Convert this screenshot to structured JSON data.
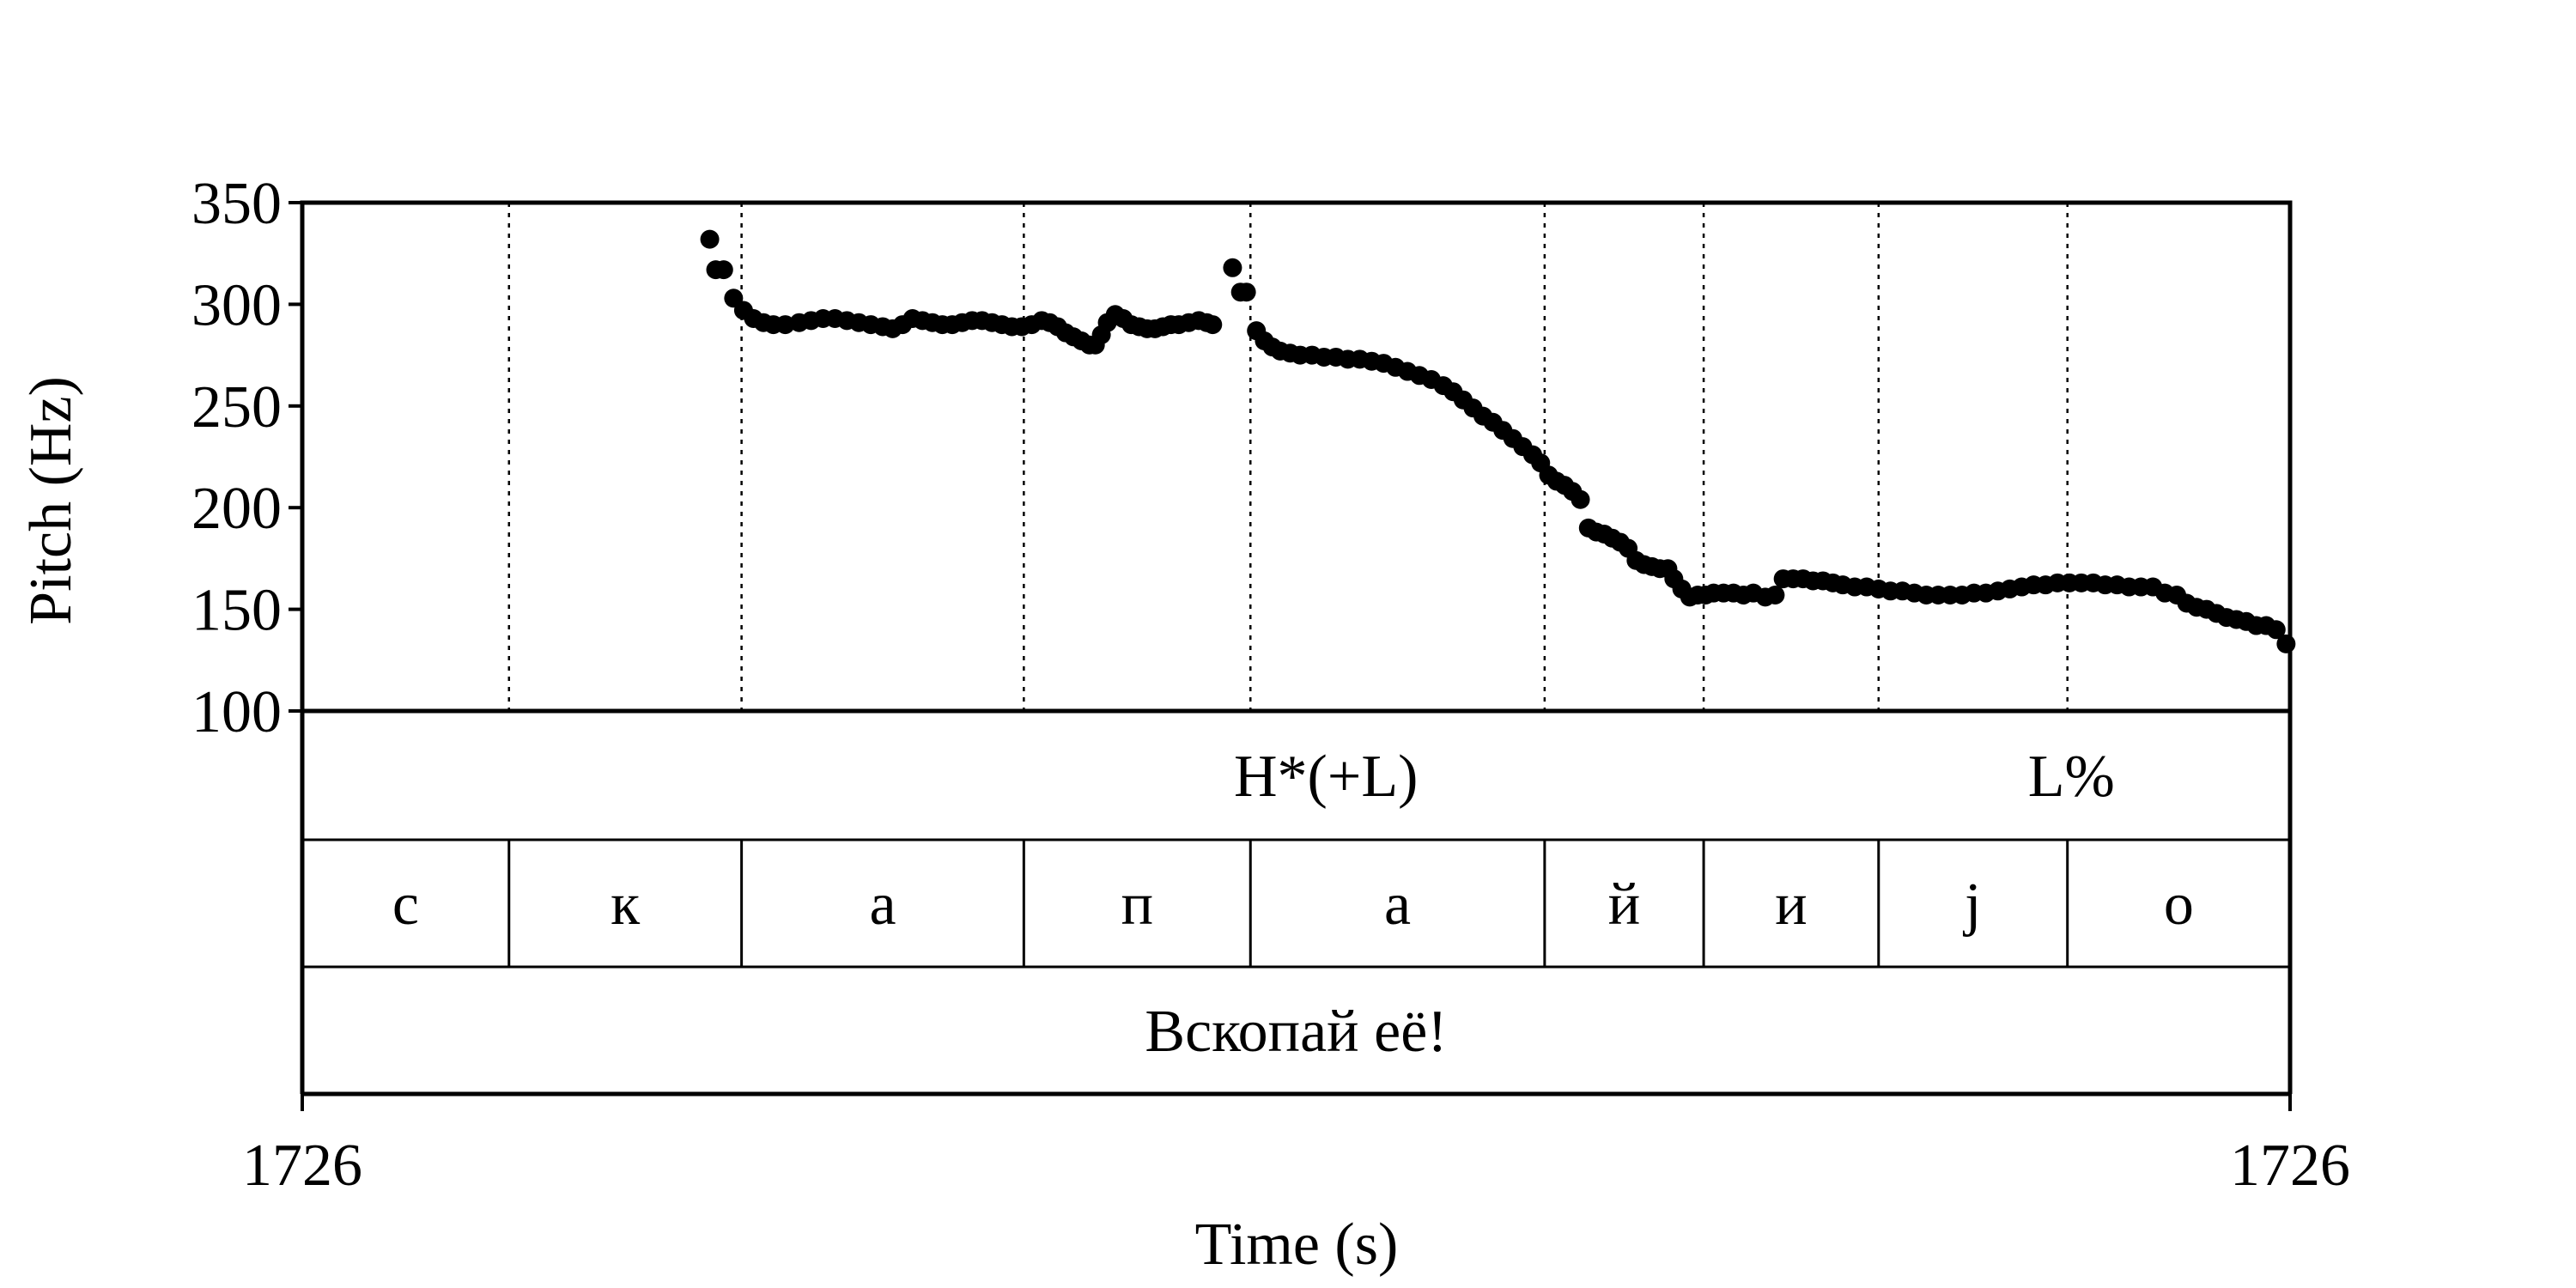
{
  "chart_data": {
    "type": "scatter",
    "title": "",
    "xlabel": "Time (s)",
    "ylabel": "Pitch (Hz)",
    "ylim": [
      100,
      350
    ],
    "yticks": [
      "350",
      "300",
      "250",
      "200",
      "150",
      "100"
    ],
    "yticks_values": [
      350,
      300,
      250,
      200,
      150,
      100
    ],
    "xtick_labels": {
      "start": "1726",
      "end": "1726"
    },
    "xlim": [
      0,
      1
    ],
    "grid": false,
    "marker_color": "#000000",
    "boundaries": [
      0.104,
      0.221,
      0.363,
      0.477,
      0.625,
      0.705,
      0.793,
      0.888
    ],
    "tone_tier": [
      {
        "label": "H*(+L)",
        "at": 0.515
      },
      {
        "label": "L%",
        "at": 0.89
      }
    ],
    "segments": [
      "с",
      "к",
      "а",
      "п",
      "а",
      "й",
      "и",
      "j",
      "о"
    ],
    "sentence": "Вскопай её!",
    "pitch_points": [
      [
        0.205,
        332
      ],
      [
        0.208,
        317
      ],
      [
        0.212,
        317
      ],
      [
        0.217,
        303
      ],
      [
        0.222,
        297
      ],
      [
        0.227,
        293
      ],
      [
        0.232,
        291
      ],
      [
        0.237,
        290
      ],
      [
        0.243,
        290
      ],
      [
        0.25,
        291
      ],
      [
        0.256,
        292
      ],
      [
        0.262,
        293
      ],
      [
        0.268,
        293
      ],
      [
        0.274,
        292
      ],
      [
        0.28,
        291
      ],
      [
        0.286,
        290
      ],
      [
        0.292,
        289
      ],
      [
        0.297,
        288
      ],
      [
        0.302,
        290
      ],
      [
        0.307,
        293
      ],
      [
        0.312,
        292
      ],
      [
        0.317,
        291
      ],
      [
        0.322,
        290
      ],
      [
        0.327,
        290
      ],
      [
        0.332,
        291
      ],
      [
        0.337,
        292
      ],
      [
        0.342,
        292
      ],
      [
        0.347,
        291
      ],
      [
        0.352,
        290
      ],
      [
        0.357,
        289
      ],
      [
        0.362,
        289
      ],
      [
        0.367,
        290
      ],
      [
        0.372,
        292
      ],
      [
        0.376,
        291
      ],
      [
        0.38,
        289
      ],
      [
        0.384,
        286
      ],
      [
        0.388,
        284
      ],
      [
        0.392,
        282
      ],
      [
        0.396,
        280
      ],
      [
        0.399,
        280
      ],
      [
        0.402,
        285
      ],
      [
        0.405,
        291
      ],
      [
        0.409,
        295
      ],
      [
        0.413,
        293
      ],
      [
        0.417,
        290
      ],
      [
        0.421,
        289
      ],
      [
        0.425,
        288
      ],
      [
        0.429,
        288
      ],
      [
        0.433,
        289
      ],
      [
        0.437,
        290
      ],
      [
        0.441,
        290
      ],
      [
        0.446,
        291
      ],
      [
        0.451,
        292
      ],
      [
        0.455,
        291
      ],
      [
        0.458,
        290
      ],
      [
        0.468,
        318
      ],
      [
        0.472,
        306
      ],
      [
        0.475,
        306
      ],
      [
        0.48,
        287
      ],
      [
        0.484,
        282
      ],
      [
        0.488,
        279
      ],
      [
        0.492,
        277
      ],
      [
        0.497,
        276
      ],
      [
        0.502,
        275
      ],
      [
        0.508,
        275
      ],
      [
        0.514,
        274
      ],
      [
        0.52,
        274
      ],
      [
        0.526,
        273
      ],
      [
        0.532,
        273
      ],
      [
        0.538,
        272
      ],
      [
        0.544,
        271
      ],
      [
        0.55,
        269
      ],
      [
        0.556,
        267
      ],
      [
        0.562,
        265
      ],
      [
        0.568,
        263
      ],
      [
        0.574,
        260
      ],
      [
        0.579,
        257
      ],
      [
        0.584,
        253
      ],
      [
        0.589,
        249
      ],
      [
        0.594,
        245
      ],
      [
        0.599,
        242
      ],
      [
        0.604,
        238
      ],
      [
        0.609,
        234
      ],
      [
        0.614,
        230
      ],
      [
        0.619,
        226
      ],
      [
        0.623,
        222
      ],
      [
        0.627,
        216
      ],
      [
        0.631,
        213
      ],
      [
        0.635,
        211
      ],
      [
        0.639,
        208
      ],
      [
        0.643,
        204
      ],
      [
        0.647,
        190
      ],
      [
        0.651,
        188
      ],
      [
        0.655,
        187
      ],
      [
        0.659,
        185
      ],
      [
        0.663,
        183
      ],
      [
        0.667,
        180
      ],
      [
        0.671,
        174
      ],
      [
        0.675,
        172
      ],
      [
        0.679,
        171
      ],
      [
        0.683,
        170
      ],
      [
        0.687,
        170
      ],
      [
        0.69,
        165
      ],
      [
        0.694,
        160
      ],
      [
        0.698,
        156
      ],
      [
        0.702,
        157
      ],
      [
        0.706,
        157
      ],
      [
        0.71,
        158
      ],
      [
        0.715,
        158
      ],
      [
        0.72,
        158
      ],
      [
        0.725,
        157
      ],
      [
        0.73,
        158
      ],
      [
        0.736,
        156
      ],
      [
        0.741,
        157
      ],
      [
        0.745,
        165
      ],
      [
        0.75,
        165
      ],
      [
        0.755,
        165
      ],
      [
        0.76,
        164
      ],
      [
        0.765,
        164
      ],
      [
        0.77,
        163
      ],
      [
        0.775,
        162
      ],
      [
        0.781,
        161
      ],
      [
        0.787,
        161
      ],
      [
        0.793,
        160
      ],
      [
        0.799,
        159
      ],
      [
        0.805,
        159
      ],
      [
        0.811,
        158
      ],
      [
        0.817,
        157
      ],
      [
        0.823,
        157
      ],
      [
        0.829,
        157
      ],
      [
        0.835,
        157
      ],
      [
        0.841,
        158
      ],
      [
        0.847,
        158
      ],
      [
        0.853,
        159
      ],
      [
        0.859,
        160
      ],
      [
        0.865,
        161
      ],
      [
        0.871,
        162
      ],
      [
        0.877,
        162
      ],
      [
        0.883,
        163
      ],
      [
        0.889,
        163
      ],
      [
        0.895,
        163
      ],
      [
        0.901,
        163
      ],
      [
        0.907,
        162
      ],
      [
        0.913,
        162
      ],
      [
        0.919,
        161
      ],
      [
        0.925,
        161
      ],
      [
        0.931,
        161
      ],
      [
        0.937,
        158
      ],
      [
        0.943,
        157
      ],
      [
        0.948,
        153
      ],
      [
        0.953,
        151
      ],
      [
        0.958,
        150
      ],
      [
        0.963,
        148
      ],
      [
        0.968,
        146
      ],
      [
        0.973,
        145
      ],
      [
        0.978,
        144
      ],
      [
        0.983,
        142
      ],
      [
        0.988,
        142
      ],
      [
        0.993,
        140
      ],
      [
        0.998,
        133
      ]
    ]
  }
}
